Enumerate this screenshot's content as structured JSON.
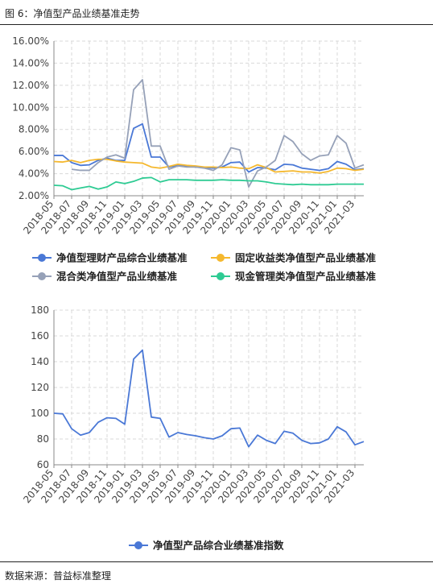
{
  "title": "图 6：净值型产品业绩基准走势",
  "source": "数据来源：普益标准整理",
  "chart_data": [
    {
      "type": "line",
      "x": [
        "2018-05",
        "2018-06",
        "2018-07",
        "2018-08",
        "2018-09",
        "2018-10",
        "2018-11",
        "2018-12",
        "2019-01",
        "2019-02",
        "2019-03",
        "2019-04",
        "2019-05",
        "2019-06",
        "2019-07",
        "2019-08",
        "2019-09",
        "2019-10",
        "2019-11",
        "2019-12",
        "2020-01",
        "2020-02",
        "2020-03",
        "2020-04",
        "2020-05",
        "2020-06",
        "2020-07",
        "2020-08",
        "2020-09",
        "2020-10",
        "2020-11",
        "2020-12",
        "2021-01",
        "2021-02",
        "2021-03",
        "2021-04"
      ],
      "x_tick_labels": [
        "2018-05",
        "2018-07",
        "2018-09",
        "2018-11",
        "2019-01",
        "2019-03",
        "2019-05",
        "2019-07",
        "2019-09",
        "2019-11",
        "2020-01",
        "2020-03",
        "2020-05",
        "2020-07",
        "2020-09",
        "2020-11",
        "2021-01",
        "2021-03"
      ],
      "y_ticks": [
        "2.00%",
        "4.00%",
        "6.00%",
        "8.00%",
        "10.00%",
        "12.00%",
        "14.00%",
        "16.00%"
      ],
      "ylim": [
        2,
        16
      ],
      "grid": true,
      "legend_position": "bottom",
      "series": [
        {
          "name": "净值型理财产品综合业绩基准",
          "color": "#4a78d6",
          "values": [
            5.65,
            5.65,
            5.0,
            4.75,
            4.8,
            5.2,
            5.4,
            5.2,
            5.2,
            8.1,
            8.5,
            5.5,
            5.5,
            4.6,
            4.75,
            4.7,
            4.6,
            4.55,
            4.5,
            4.6,
            5.0,
            5.05,
            4.15,
            4.55,
            4.5,
            4.35,
            4.85,
            4.8,
            4.5,
            4.4,
            4.3,
            4.45,
            5.1,
            4.85,
            4.35,
            4.45
          ]
        },
        {
          "name": "固定收益类净值型产品业绩基准",
          "color": "#f5b82e",
          "values": [
            5.1,
            5.05,
            5.2,
            5.0,
            5.2,
            5.3,
            5.3,
            5.15,
            5.05,
            5.0,
            4.95,
            4.6,
            4.5,
            4.65,
            4.85,
            4.75,
            4.7,
            4.6,
            4.6,
            4.55,
            4.6,
            4.5,
            4.45,
            4.8,
            4.55,
            4.15,
            4.2,
            4.25,
            4.15,
            4.15,
            4.05,
            4.2,
            4.5,
            4.45,
            4.3,
            4.4
          ]
        },
        {
          "name": "混合类净值型产品业绩基准",
          "color": "#96a1b8",
          "values": [
            null,
            null,
            4.4,
            4.3,
            4.3,
            5.0,
            5.5,
            5.7,
            5.4,
            11.6,
            12.5,
            6.5,
            6.5,
            4.4,
            4.7,
            4.6,
            4.6,
            4.5,
            4.3,
            4.8,
            6.35,
            6.15,
            2.8,
            4.25,
            4.6,
            5.2,
            7.45,
            6.9,
            5.8,
            5.2,
            5.6,
            5.7,
            7.45,
            6.75,
            4.5,
            4.8
          ]
        },
        {
          "name": "现金管理类净值型产品业绩基准",
          "color": "#2ecb93",
          "values": [
            2.95,
            2.9,
            2.55,
            2.7,
            2.85,
            2.6,
            2.8,
            3.25,
            3.1,
            3.3,
            3.6,
            3.65,
            3.25,
            3.45,
            3.45,
            3.45,
            3.4,
            3.4,
            3.4,
            3.45,
            3.4,
            3.4,
            3.35,
            3.35,
            3.25,
            3.1,
            3.05,
            3.0,
            3.05,
            3.0,
            3.0,
            3.0,
            3.05,
            3.05,
            3.05,
            3.05
          ]
        }
      ]
    },
    {
      "type": "line",
      "x": [
        "2018-05",
        "2018-06",
        "2018-07",
        "2018-08",
        "2018-09",
        "2018-10",
        "2018-11",
        "2018-12",
        "2019-01",
        "2019-02",
        "2019-03",
        "2019-04",
        "2019-05",
        "2019-06",
        "2019-07",
        "2019-08",
        "2019-09",
        "2019-10",
        "2019-11",
        "2019-12",
        "2020-01",
        "2020-02",
        "2020-03",
        "2020-04",
        "2020-05",
        "2020-06",
        "2020-07",
        "2020-08",
        "2020-09",
        "2020-10",
        "2020-11",
        "2020-12",
        "2021-01",
        "2021-02",
        "2021-03",
        "2021-04"
      ],
      "x_tick_labels": [
        "2018-05",
        "2018-07",
        "2018-09",
        "2018-11",
        "2019-01",
        "2019-03",
        "2019-05",
        "2019-07",
        "2019-09",
        "2019-11",
        "2020-01",
        "2020-03",
        "2020-05",
        "2020-07",
        "2020-09",
        "2020-11",
        "2021-01",
        "2021-03"
      ],
      "y_ticks": [
        "60",
        "80",
        "100",
        "120",
        "140",
        "160",
        "180"
      ],
      "ylim": [
        60,
        180
      ],
      "grid": true,
      "legend_position": "bottom",
      "series": [
        {
          "name": "净值型产品综合业绩基准指数",
          "color": "#4a78d6",
          "values": [
            100,
            99.5,
            88,
            83,
            85,
            93,
            96.5,
            96,
            91.5,
            142,
            149,
            97,
            96,
            81.5,
            85,
            83.5,
            82.5,
            81,
            80,
            82.5,
            88,
            88.5,
            74,
            83,
            79,
            76.5,
            86,
            84.5,
            79,
            76.5,
            77,
            80,
            89.5,
            85.5,
            75.5,
            78
          ]
        }
      ]
    }
  ]
}
